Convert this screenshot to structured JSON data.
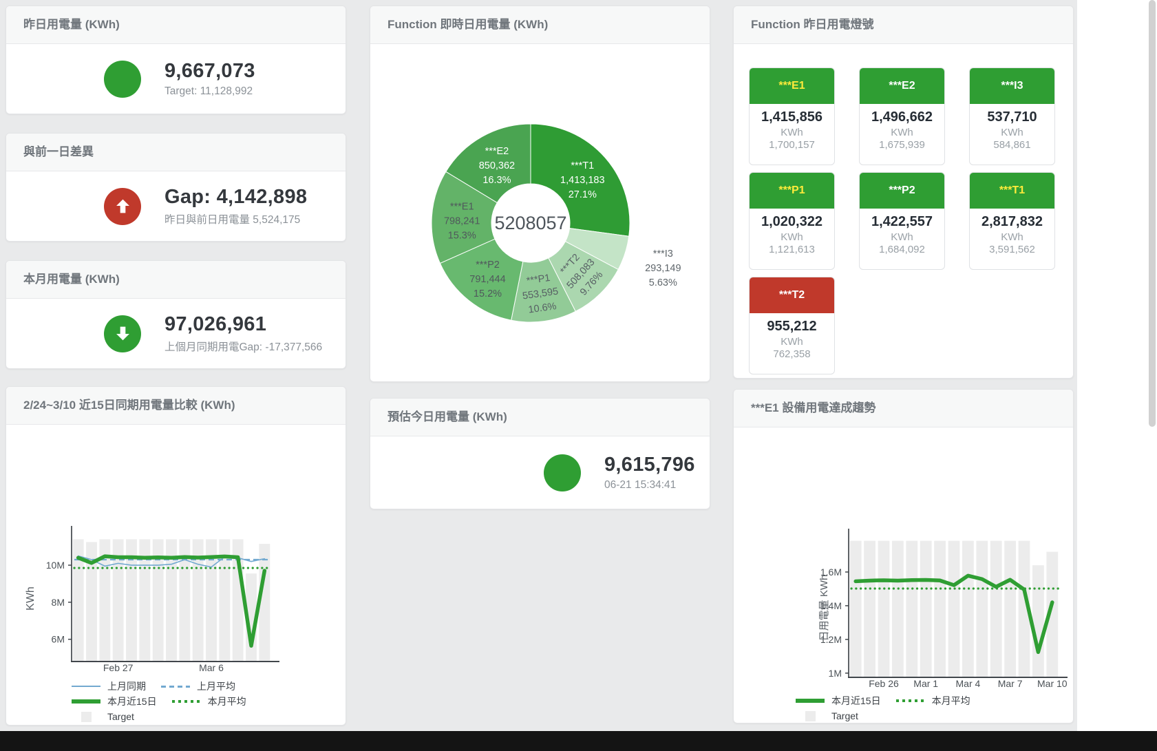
{
  "colors": {
    "accent_green": "#2f9e33",
    "alert_red": "#c0392b",
    "line_blue": "#72a9d0",
    "target_gray": "#ececec",
    "header_yellow": "#ffeb3b"
  },
  "kpi": {
    "yesterday": {
      "title": "昨日用電量 (KWh)",
      "value": "9,667,073",
      "subtitle": "Target: 11,128,992",
      "indicator": {
        "type": "circle",
        "color": "#2f9e33"
      }
    },
    "gap": {
      "title": "與前一日差異",
      "value": "Gap: 4,142,898",
      "subtitle": "昨日與前日用電量 5,524,175",
      "indicator": {
        "type": "arrow-up",
        "color": "#c0392b"
      }
    },
    "month": {
      "title": "本月用電量 (KWh)",
      "value": "97,026,961",
      "subtitle": "上個月同期用電Gap: -17,377,566",
      "indicator": {
        "type": "arrow-down",
        "color": "#2f9e33"
      }
    },
    "estimate": {
      "title": "預估今日用電量 (KWh)",
      "value": "9,615,796",
      "subtitle": "06-21 15:34:41",
      "indicator": {
        "type": "circle",
        "color": "#2f9e33"
      }
    }
  },
  "tiles": {
    "title": "Function 昨日用電燈號",
    "items": [
      {
        "name": "***E1",
        "value": "1,415,856",
        "unit": "KWh",
        "target": "1,700,157",
        "header_bg": "#2f9e33",
        "header_color": "#ffeb3b"
      },
      {
        "name": "***E2",
        "value": "1,496,662",
        "unit": "KWh",
        "target": "1,675,939",
        "header_bg": "#2f9e33",
        "header_color": "#ffffff"
      },
      {
        "name": "***I3",
        "value": "537,710",
        "unit": "KWh",
        "target": "584,861",
        "header_bg": "#2f9e33",
        "header_color": "#ffffff"
      },
      {
        "name": "***P1",
        "value": "1,020,322",
        "unit": "KWh",
        "target": "1,121,613",
        "header_bg": "#2f9e33",
        "header_color": "#ffeb3b"
      },
      {
        "name": "***P2",
        "value": "1,422,557",
        "unit": "KWh",
        "target": "1,684,092",
        "header_bg": "#2f9e33",
        "header_color": "#ffffff"
      },
      {
        "name": "***T1",
        "value": "2,817,832",
        "unit": "KWh",
        "target": "3,591,562",
        "header_bg": "#2f9e33",
        "header_color": "#ffeb3b"
      },
      {
        "name": "***T2",
        "value": "955,212",
        "unit": "KWh",
        "target": "762,358",
        "header_bg": "#c0392b",
        "header_color": "#ffffff"
      }
    ]
  },
  "chart_data": [
    {
      "id": "realtime_donut",
      "type": "pie",
      "title": "Function 即時日用電量 (KWh)",
      "center_label": "5208057",
      "slices": [
        {
          "name": "***T1",
          "value": 1413183,
          "value_label": "1,413,183",
          "pct_label": "27.1%",
          "color": "#2f9c34",
          "label_color": "#ffffff"
        },
        {
          "name": "***I3",
          "value": 293149,
          "value_label": "293,149",
          "pct_label": "5.63%",
          "color": "#c4e4c7",
          "label_color": "#5f666b",
          "outside": true
        },
        {
          "name": "***T2",
          "value": 508083,
          "value_label": "508,083",
          "pct_label": "9.76%",
          "color": "#abd7af",
          "label_color": "#575f64",
          "rotate": -48
        },
        {
          "name": "***P1",
          "value": 553595,
          "value_label": "553,595",
          "pct_label": "10.6%",
          "color": "#92cb97",
          "label_color": "#575f64",
          "rotate": -8
        },
        {
          "name": "***P2",
          "value": 791444,
          "value_label": "791,444",
          "pct_label": "15.2%",
          "color": "#68b96f",
          "label_color": "#50585c"
        },
        {
          "name": "***E1",
          "value": 798241,
          "value_label": "798,241",
          "pct_label": "15.3%",
          "color": "#63b368",
          "label_color": "#50585c"
        },
        {
          "name": "***E2",
          "value": 850362,
          "value_label": "850,362",
          "pct_label": "16.3%",
          "color": "#4aa451",
          "label_color": "#ffffff"
        }
      ]
    },
    {
      "id": "compare_15day",
      "type": "line+bar",
      "title": "2/24~3/10 近15日同期用電量比較 (KWh)",
      "xlabel": "",
      "ylabel": "KWh",
      "x": [
        "2/24",
        "2/25",
        "2/26",
        "2/27",
        "2/28",
        "3/1",
        "3/2",
        "3/3",
        "3/4",
        "3/5",
        "3/6",
        "3/7",
        "3/8",
        "3/9",
        "3/10"
      ],
      "x_ticks": [
        {
          "i": 3,
          "label": "Feb 27"
        },
        {
          "i": 10,
          "label": "Mar 6"
        }
      ],
      "y_ticks": [
        {
          "v": 6000000,
          "label": "6M"
        },
        {
          "v": 8000000,
          "label": "8M"
        },
        {
          "v": 10000000,
          "label": "10M"
        }
      ],
      "ylim": [
        4800000,
        11600000
      ],
      "bars": {
        "name": "Target",
        "color": "#ececec",
        "values": [
          11400000,
          11250000,
          11400000,
          11400000,
          11400000,
          11400000,
          11400000,
          11400000,
          11400000,
          11400000,
          11400000,
          11400000,
          11400000,
          9550000,
          11150000
        ]
      },
      "series": [
        {
          "name": "上月同期",
          "color": "#72a9d0",
          "width": 1.6,
          "style": "solid",
          "values": [
            10500000,
            10300000,
            9950000,
            10100000,
            10000000,
            10000000,
            10000000,
            10050000,
            10300000,
            10050000,
            9900000,
            10450000,
            10400000,
            10200000,
            10350000
          ]
        },
        {
          "name": "上月平均",
          "color": "#72a9d0",
          "width": 2.2,
          "style": "dashed",
          "flat": 10300000
        },
        {
          "name": "本月近15日",
          "color": "#2f9e33",
          "width": 5.5,
          "style": "solid",
          "values": [
            10400000,
            10120000,
            10480000,
            10430000,
            10430000,
            10400000,
            10420000,
            10400000,
            10440000,
            10410000,
            10440000,
            10470000,
            10430000,
            5650000,
            9700000
          ]
        },
        {
          "name": "本月平均",
          "color": "#2f9e33",
          "width": 3.2,
          "style": "dotted",
          "flat": 9850000
        }
      ],
      "legend": [
        [
          "上月同期",
          "上月平均"
        ],
        [
          "本月近15日",
          "本月平均"
        ],
        [
          "Target"
        ]
      ],
      "legend_position": "bottom",
      "grid": false
    },
    {
      "id": "e1_trend",
      "type": "line+bar",
      "title": "***E1 設備用電達成趨勢",
      "xlabel": "",
      "ylabel": "日用電量 KWh",
      "x": [
        "2/24",
        "2/25",
        "2/26",
        "2/27",
        "2/28",
        "3/1",
        "3/2",
        "3/3",
        "3/4",
        "3/5",
        "3/6",
        "3/7",
        "3/8",
        "3/9",
        "3/10"
      ],
      "x_ticks": [
        {
          "i": 2,
          "label": "Feb 26"
        },
        {
          "i": 5,
          "label": "Mar 1"
        },
        {
          "i": 8,
          "label": "Mar 4"
        },
        {
          "i": 11,
          "label": "Mar 7"
        },
        {
          "i": 14,
          "label": "Mar 10"
        }
      ],
      "y_ticks": [
        {
          "v": 1000000,
          "label": "1M"
        },
        {
          "v": 1200000,
          "label": "1.2M"
        },
        {
          "v": 1400000,
          "label": "1.4M"
        },
        {
          "v": 1600000,
          "label": "1.6M"
        }
      ],
      "ylim": [
        975000,
        1800000
      ],
      "bars": {
        "name": "Target",
        "color": "#ececec",
        "values": [
          1785000,
          1785000,
          1785000,
          1785000,
          1785000,
          1785000,
          1785000,
          1785000,
          1785000,
          1785000,
          1785000,
          1785000,
          1785000,
          1640000,
          1720000
        ]
      },
      "series": [
        {
          "name": "本月近15日",
          "color": "#2f9e33",
          "width": 5.5,
          "style": "solid",
          "values": [
            1545000,
            1549000,
            1551000,
            1549000,
            1552000,
            1553000,
            1550000,
            1522000,
            1578000,
            1558000,
            1512000,
            1554000,
            1496000,
            1125000,
            1420000
          ]
        },
        {
          "name": "本月平均",
          "color": "#2f9e33",
          "width": 3.2,
          "style": "dotted",
          "flat": 1502000
        }
      ],
      "legend": [
        [
          "本月近15日",
          "本月平均"
        ],
        [
          "Target"
        ]
      ],
      "legend_position": "bottom",
      "grid": false
    }
  ]
}
